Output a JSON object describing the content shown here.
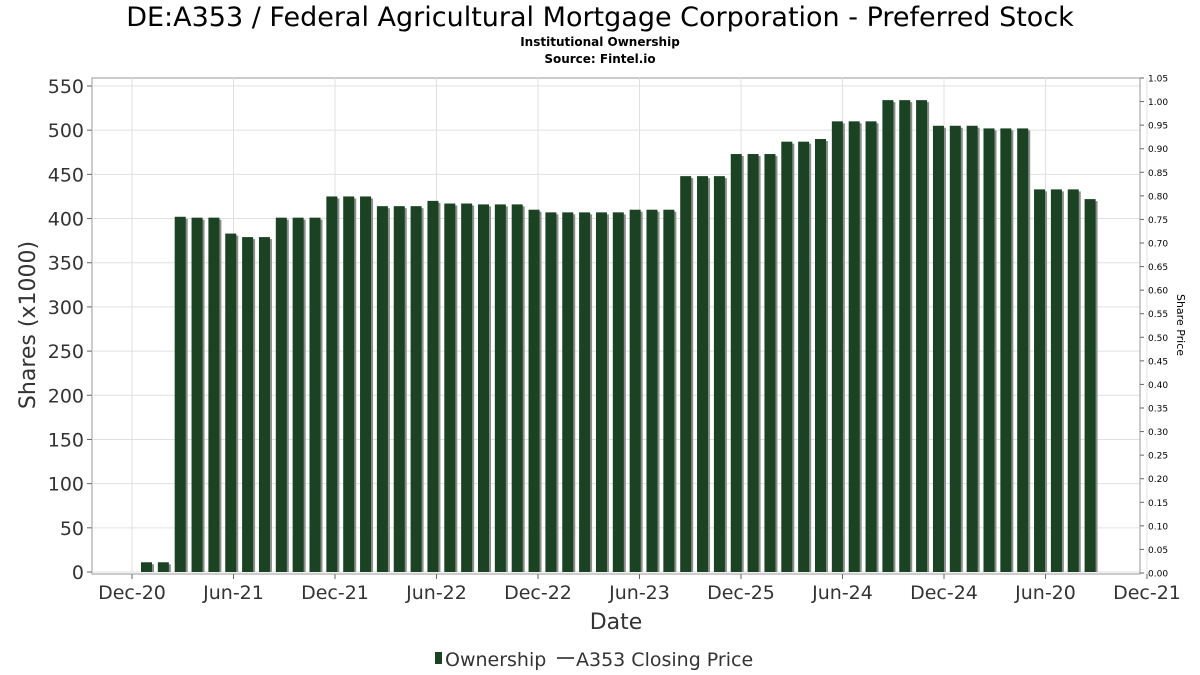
{
  "chart_data": {
    "type": "bar",
    "title": "DE:A353 / Federal Agricultural Mortgage Corporation - Preferred Stock",
    "subtitle_lines": [
      "Institutional Ownership",
      "Source: Fintel.io"
    ],
    "xlabel": "Date",
    "ylabel": "Shares (x1000)",
    "ylabel_right": "Share Price",
    "ylim": [
      0,
      560
    ],
    "ylim_right": [
      0,
      1.05
    ],
    "y_ticks": [
      0,
      50,
      100,
      150,
      200,
      250,
      300,
      350,
      400,
      450,
      500,
      550
    ],
    "y_right_ticks": [
      "0.00",
      "0.05",
      "0.10",
      "0.15",
      "0.20",
      "0.25",
      "0.30",
      "0.35",
      "0.40",
      "0.45",
      "0.50",
      "0.55",
      "0.60",
      "0.65",
      "0.70",
      "0.75",
      "0.80",
      "0.85",
      "0.90",
      "0.95",
      "1.00",
      "1.05"
    ],
    "x_tick_labels": [
      "Dec-20",
      "Jun-21",
      "Dec-21",
      "Jun-22",
      "Dec-22",
      "Jun-23",
      "Dec-25",
      "Jun-24",
      "Dec-24",
      "Jun-20",
      "Dec-21"
    ],
    "grid": true,
    "legend_position": "bottom",
    "series": [
      {
        "name": "Ownership",
        "color": "#1a4223",
        "values": [
          11,
          11,
          402,
          401,
          401,
          383,
          379,
          379,
          401,
          401,
          401,
          425,
          425,
          425,
          414,
          414,
          414,
          420,
          417,
          417,
          416,
          416,
          416,
          410,
          407,
          407,
          407,
          407,
          407,
          410,
          410,
          410,
          448,
          448,
          448,
          473,
          473,
          473,
          487,
          487,
          490,
          510,
          510,
          510,
          534,
          534,
          534,
          505,
          505,
          505,
          502,
          502,
          502,
          433,
          433,
          433,
          422
        ]
      },
      {
        "name": "A353 Closing Price",
        "color": "#555555",
        "values": []
      }
    ]
  }
}
